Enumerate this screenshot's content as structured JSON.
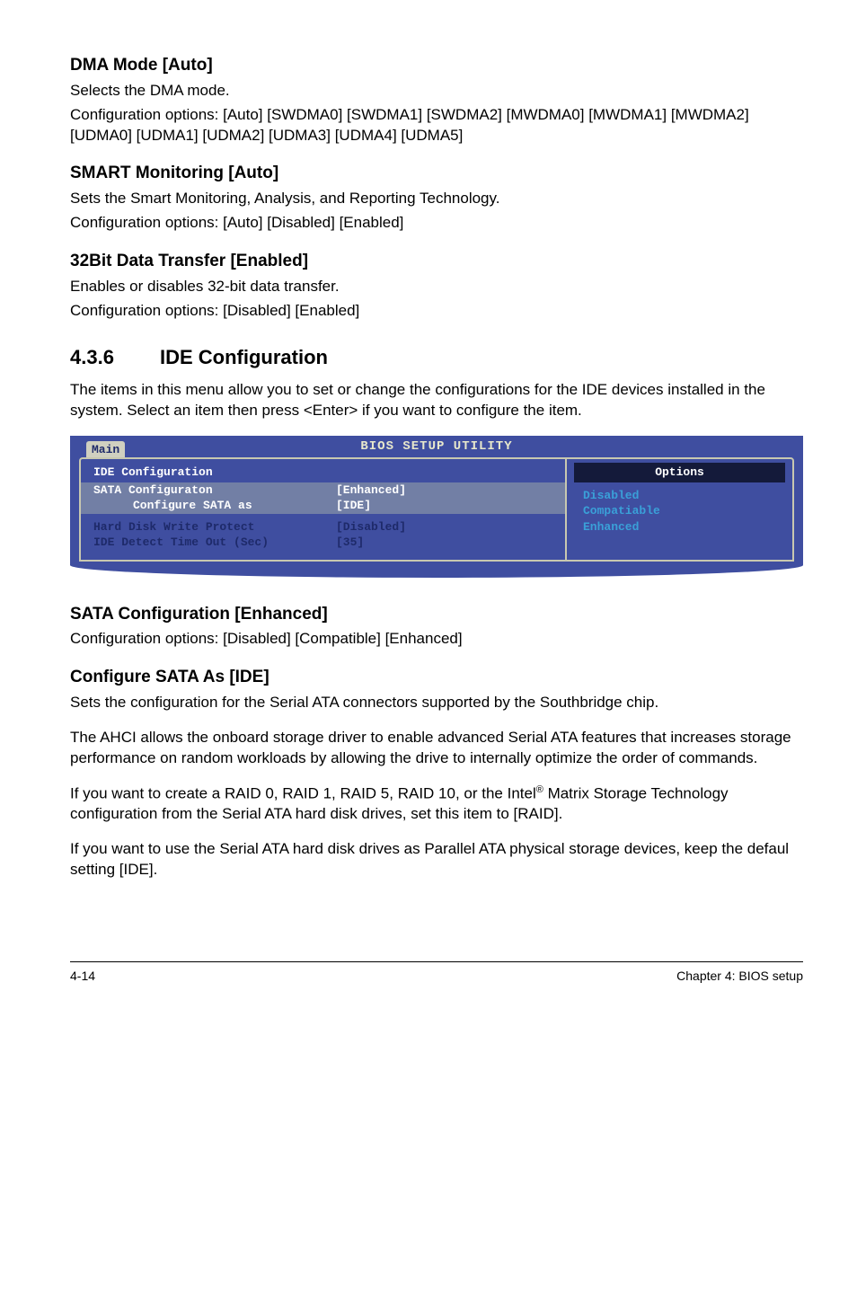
{
  "sections": {
    "dma": {
      "title": "DMA Mode [Auto]",
      "line1": "Selects the DMA mode.",
      "line2": "Configuration options: [Auto] [SWDMA0] [SWDMA1] [SWDMA2] [MWDMA0] [MWDMA1] [MWDMA2] [UDMA0] [UDMA1] [UDMA2] [UDMA3] [UDMA4] [UDMA5]"
    },
    "smart": {
      "title": "SMART Monitoring [Auto]",
      "line1": "Sets the Smart Monitoring, Analysis, and Reporting Technology.",
      "line2": "Configuration options: [Auto] [Disabled] [Enabled]"
    },
    "bit32": {
      "title": "32Bit Data Transfer [Enabled]",
      "line1": "Enables or disables 32-bit data transfer.",
      "line2": "Configuration options: [Disabled] [Enabled]"
    }
  },
  "ideConfig": {
    "num": "4.3.6",
    "title": "IDE Configuration",
    "intro": "The items in this menu allow you to set or change the configurations for the IDE devices installed in the system. Select an item then press <Enter> if you want to configure the item."
  },
  "bios": {
    "titlebar": "BIOS SETUP UTILITY",
    "tab": "Main",
    "header": "IDE Configuration",
    "rows": [
      {
        "label": "SATA Configuraton",
        "value": "[Enhanced]",
        "sel": true
      },
      {
        "label": "Configure SATA as",
        "value": "[IDE]",
        "sub": true
      },
      {
        "label": "Hard Disk Write Protect",
        "value": "[Disabled]",
        "dim": true,
        "gapBefore": true
      },
      {
        "label": "IDE Detect Time Out (Sec)",
        "value": "[35]",
        "dim": true
      }
    ],
    "options_header": "Options",
    "options": [
      "Disabled",
      "Compatiable",
      "Enhanced"
    ],
    "colors": {
      "panel_bg": "#3f4ea0",
      "border": "#c8c8b0",
      "title_text": "#e8e8cc",
      "tab_bg": "#d0d0c0",
      "tab_text": "#1e2a6a",
      "sel_bg": "#727fa5",
      "dim_text": "#1e2a6a",
      "opt_head_bg": "#141a3a",
      "opt_text": "#3aa0d8"
    }
  },
  "sata": {
    "title": "SATA Configuration [Enhanced]",
    "line1": "Configuration options: [Disabled] [Compatible] [Enhanced]"
  },
  "cfgSata": {
    "title": "Configure SATA As [IDE]",
    "p1": "Sets the configuration for the Serial ATA connectors supported by the Southbridge chip.",
    "p2": "The AHCI allows the onboard storage driver to enable advanced Serial ATA features that increases storage performance on random workloads by allowing the drive to internally optimize the order of commands.",
    "p3a": "If you want to create a RAID 0, RAID 1, RAID 5, RAID 10, or the Intel",
    "p3b": " Matrix Storage Technology configuration from the Serial ATA hard disk drives, set this item to [RAID].",
    "p4": "If you want to use the Serial ATA hard disk drives as Parallel ATA physical storage devices, keep the defaul setting [IDE]."
  },
  "footer": {
    "left": "4-14",
    "right": "Chapter 4: BIOS setup"
  }
}
